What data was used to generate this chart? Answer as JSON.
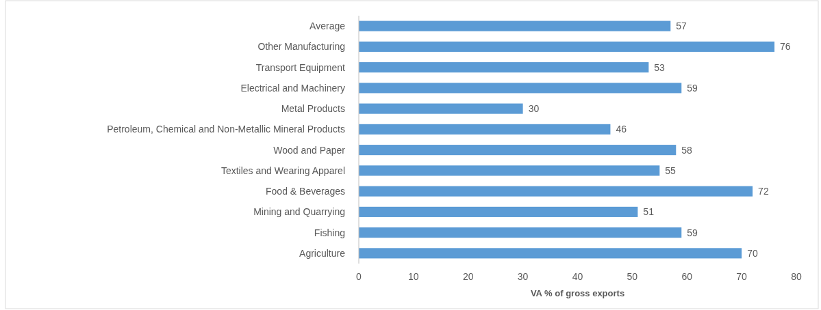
{
  "chart_data": {
    "type": "bar",
    "orientation": "horizontal",
    "xlabel": "VA % of gross exports",
    "categories": [
      "Average",
      "Other Manufacturing",
      "Transport Equipment",
      "Electrical and Machinery",
      "Metal Products",
      "Petroleum, Chemical and Non-Metallic Mineral Products",
      "Wood and Paper",
      "Textiles and Wearing Apparel",
      "Food & Beverages",
      "Mining and Quarrying",
      "Fishing",
      "Agriculture"
    ],
    "values": [
      57,
      76,
      53,
      59,
      30,
      46,
      58,
      55,
      72,
      51,
      59,
      70
    ],
    "color": "#5b9bd5",
    "xlim": [
      0,
      80
    ],
    "xticks": [
      0,
      10,
      20,
      30,
      40,
      50,
      60,
      70,
      80
    ],
    "data_labels": true,
    "grid": false
  }
}
